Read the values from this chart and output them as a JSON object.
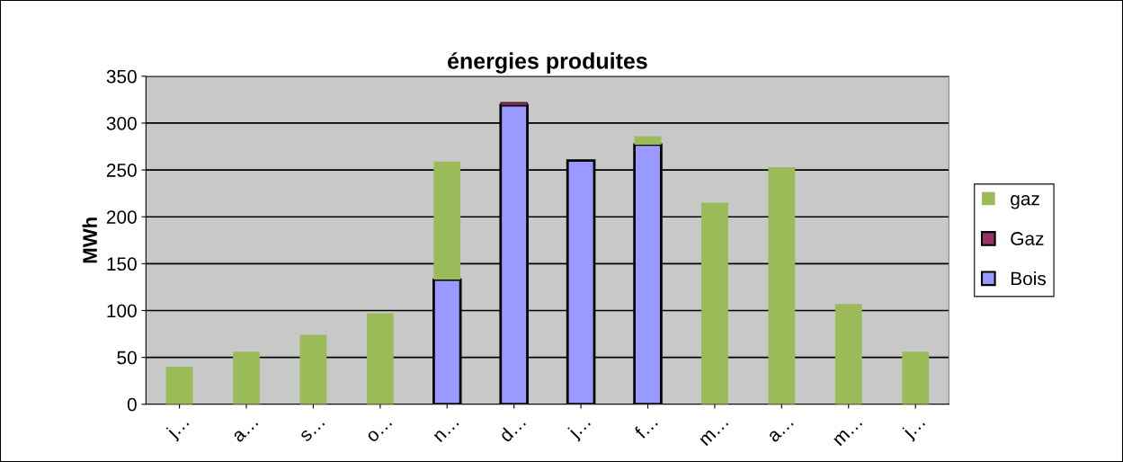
{
  "chart_data": {
    "type": "bar",
    "title": "énergies produites",
    "ylabel": "MWh",
    "categories": [
      "j…",
      "a…",
      "s…",
      "o…",
      "n…",
      "d…",
      "j…",
      "f…",
      "m…",
      "a…",
      "m…",
      "j…"
    ],
    "stacked": true,
    "series": [
      {
        "name": "Bois",
        "color": "#9999ff",
        "values": [
          null,
          null,
          null,
          null,
          133,
          319,
          260,
          277,
          null,
          null,
          null,
          null
        ]
      },
      {
        "name": "Gaz",
        "color": "#993366",
        "values": [
          null,
          null,
          null,
          null,
          null,
          3,
          null,
          null,
          null,
          null,
          null,
          null
        ]
      },
      {
        "name": "gaz",
        "color": "#9bbb59",
        "values": [
          40,
          56,
          74,
          97,
          126,
          null,
          null,
          9,
          215,
          253,
          107,
          56
        ]
      }
    ],
    "ylim": [
      0,
      350
    ],
    "yticks": [
      0,
      50,
      100,
      150,
      200,
      250,
      300,
      350
    ],
    "grid": "y",
    "legend": "right"
  }
}
